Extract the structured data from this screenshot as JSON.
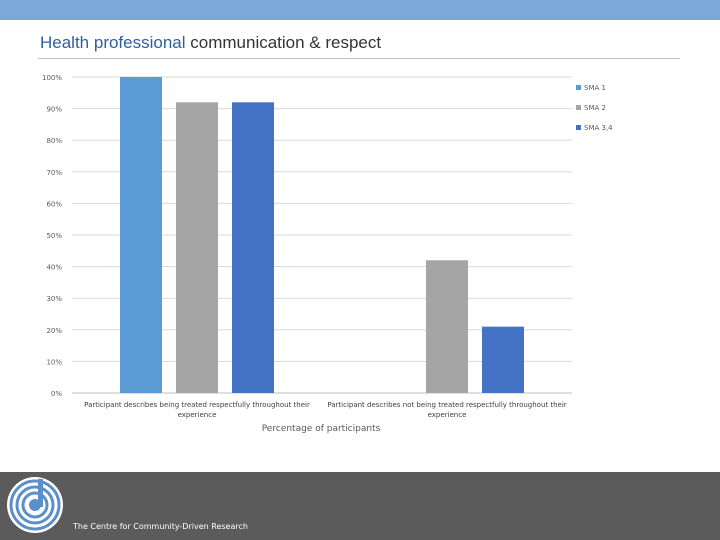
{
  "slide": {
    "title_accent": "Health professional",
    "title_rest": " communication & respect",
    "footer_text": "The Centre for Community-Driven Research"
  },
  "colors": {
    "top_bar": "#7ba7d9",
    "title_accent": "#2f5f9e",
    "footer_bg": "#5b5b5b",
    "logo_ring": "#5b8fc9"
  },
  "icons": {
    "logo": "ccdr-logo-icon"
  },
  "chart_data": {
    "type": "bar",
    "categories": [
      [
        "Participant describes being treated respectfully throughout their",
        "experience"
      ],
      [
        "Participant describes not being treated respectfully throughout their",
        "experience"
      ]
    ],
    "series": [
      {
        "name": "SMA 1",
        "color": "#5b9bd5",
        "values": [
          100,
          0
        ]
      },
      {
        "name": "SMA 2",
        "color": "#a5a5a5",
        "values": [
          92,
          42
        ]
      },
      {
        "name": "SMA 3,4",
        "color": "#4472c4",
        "values": [
          92,
          21
        ]
      }
    ],
    "xlabel": "Percentage of participants",
    "ylabel": "",
    "ylim": [
      0,
      100
    ],
    "yticks": [
      "0%",
      "10%",
      "20%",
      "30%",
      "40%",
      "50%",
      "60%",
      "70%",
      "80%",
      "90%",
      "100%"
    ],
    "grid": true,
    "legend": "top-right"
  }
}
